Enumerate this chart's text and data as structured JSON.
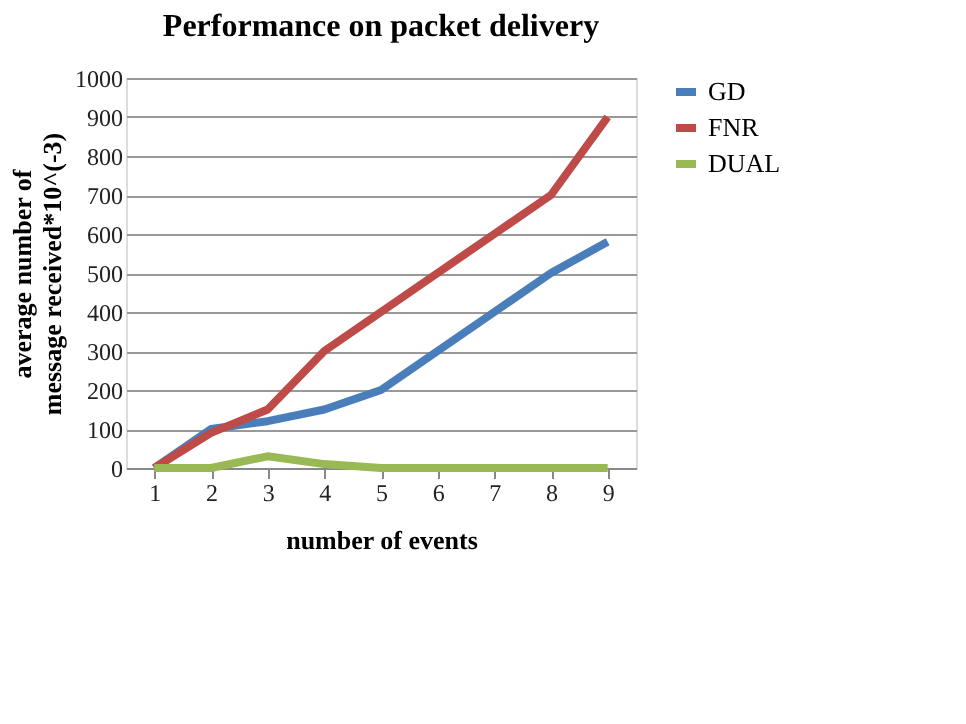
{
  "chart_data": {
    "type": "line",
    "title": "Performance on packet delivery",
    "xlabel": "number of events",
    "ylabel": "average number of message received*10^(-3)",
    "categories": [
      "1",
      "2",
      "3",
      "4",
      "5",
      "6",
      "7",
      "8",
      "9"
    ],
    "series": [
      {
        "name": "GD",
        "color": "#4a7ebb",
        "values": [
          0,
          100,
          120,
          150,
          200,
          300,
          400,
          500,
          580
        ]
      },
      {
        "name": "FNR",
        "color": "#be4b48",
        "values": [
          0,
          90,
          150,
          300,
          400,
          500,
          600,
          700,
          900
        ]
      },
      {
        "name": "DUAL",
        "color": "#98b954",
        "values": [
          0,
          0,
          30,
          10,
          0,
          0,
          0,
          0,
          0
        ]
      }
    ],
    "ylim": [
      0,
      1000
    ],
    "yticks": [
      0,
      100,
      200,
      300,
      400,
      500,
      600,
      700,
      800,
      900,
      1000
    ],
    "grid": "y",
    "legend": "right",
    "marker": "none",
    "line_style": "solid"
  }
}
